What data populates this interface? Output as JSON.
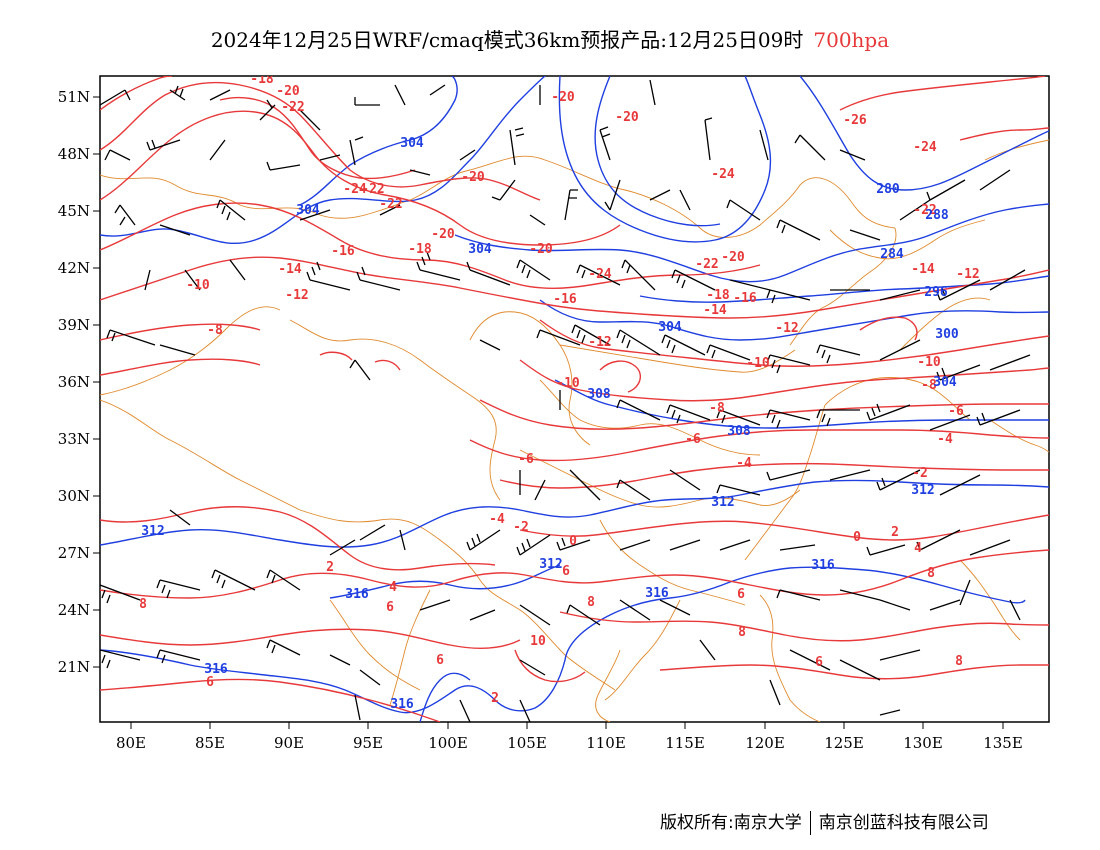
{
  "header": {
    "title": "2024年12月25日WRF/cmaq模式36km预报产品:12月25日09时",
    "level": "700hpa"
  },
  "footer": {
    "copyright": "版权所有:南京大学",
    "company": "南京创蓝科技有限公司"
  },
  "axes": {
    "lon_ticks": [
      "80E",
      "85E",
      "90E",
      "95E",
      "100E",
      "105E",
      "110E",
      "115E",
      "120E",
      "125E",
      "130E",
      "135E"
    ],
    "lat_ticks": [
      "51N",
      "48N",
      "45N",
      "42N",
      "39N",
      "36N",
      "33N",
      "30N",
      "27N",
      "24N",
      "21N"
    ]
  },
  "colors": {
    "temperature": "#e8393a",
    "geopotential": "#1f3fe0",
    "border": "#e08a2e",
    "wind": "#000000"
  },
  "temperature_labels": [
    "-18",
    "-20",
    "-22",
    "-20",
    "-20",
    "-20",
    "-22",
    "-24",
    "-22",
    "-26",
    "-24",
    "-22",
    "-24",
    "-20",
    "-18",
    "-20",
    "-16",
    "-24",
    "-22",
    "-20",
    "-16",
    "-14",
    "-12",
    "-18",
    "-16",
    "-12",
    "-14",
    "-10",
    "-8",
    "-10",
    "-12",
    "-14",
    "-12",
    "-10",
    "-10",
    "-8",
    "-6",
    "-8",
    "-6",
    "-4",
    "-6",
    "-4",
    "-4",
    "-2",
    "-2",
    "0",
    "2",
    "0",
    "2",
    "4",
    "4",
    "6",
    "6",
    "8",
    "8",
    "6",
    "6",
    "8",
    "6",
    "8",
    "10",
    "6",
    "8",
    "2"
  ],
  "geopotential_labels": [
    "304",
    "304",
    "304",
    "304",
    "280",
    "284",
    "288",
    "296",
    "300",
    "304",
    "308",
    "308",
    "312",
    "312",
    "312",
    "312",
    "316",
    "316",
    "316",
    "316",
    "316"
  ],
  "wind_barbs_note": ""
}
